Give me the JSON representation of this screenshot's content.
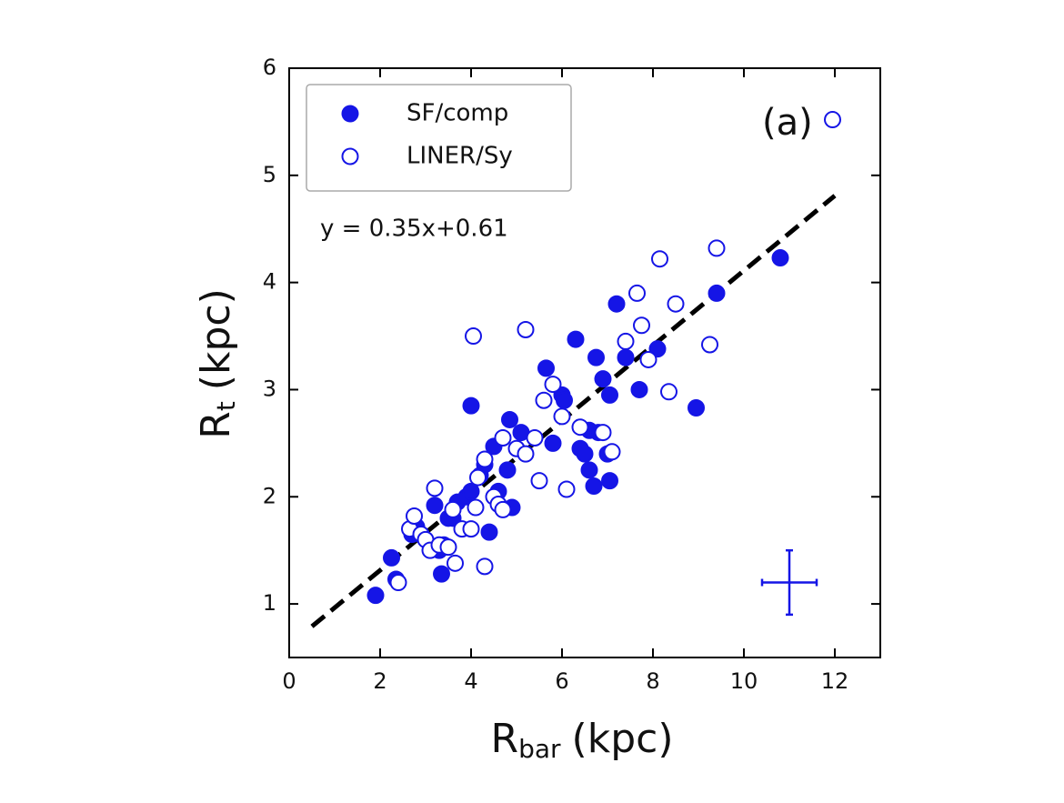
{
  "chart_data": {
    "type": "scatter",
    "xlabel": [
      "R",
      "bar",
      "(kpc)"
    ],
    "ylabel": [
      "R",
      "t",
      "(kpc)"
    ],
    "annotation": "y = 0.35x+0.61",
    "panel_label": "(a)",
    "xlim": [
      0,
      13
    ],
    "xticks": [
      0,
      2,
      4,
      6,
      8,
      10,
      12
    ],
    "ylim": [
      0.5,
      6
    ],
    "yticks": [
      1,
      2,
      3,
      4,
      5,
      6
    ],
    "legend": "upper left",
    "series": [
      {
        "name": "SF/comp",
        "color": "#1515e6",
        "marker": "filled",
        "x": [
          1.9,
          2.25,
          2.35,
          2.8,
          2.7,
          3.2,
          3.3,
          3.35,
          3.5,
          3.7,
          3.9,
          4.0,
          4.0,
          4.2,
          4.3,
          4.4,
          4.5,
          4.6,
          4.8,
          4.85,
          4.9,
          5.1,
          5.65,
          5.8,
          6.0,
          6.05,
          6.3,
          6.4,
          6.5,
          6.6,
          6.6,
          6.7,
          6.75,
          6.8,
          6.9,
          7.0,
          7.05,
          7.05,
          7.2,
          7.4,
          7.7,
          8.1,
          8.95,
          9.4,
          10.8,
          3.4,
          3.6
        ],
        "values": [
          1.08,
          1.43,
          1.23,
          1.72,
          1.65,
          1.92,
          1.5,
          1.28,
          1.8,
          1.95,
          2.0,
          2.05,
          2.85,
          2.2,
          2.3,
          1.67,
          2.47,
          2.05,
          2.25,
          2.72,
          1.9,
          2.6,
          3.2,
          2.5,
          2.95,
          2.9,
          3.47,
          2.45,
          2.4,
          2.25,
          2.62,
          2.1,
          3.3,
          2.6,
          3.1,
          2.4,
          2.95,
          2.15,
          3.8,
          3.3,
          3.0,
          3.38,
          2.83,
          3.9,
          4.23,
          1.55,
          1.8
        ]
      },
      {
        "name": "LINER/Sy",
        "color": "#1515e6",
        "marker": "open",
        "x": [
          2.4,
          2.65,
          2.75,
          2.9,
          3.0,
          3.2,
          3.1,
          3.3,
          3.5,
          3.6,
          3.65,
          3.8,
          4.0,
          4.05,
          4.1,
          4.15,
          4.3,
          4.3,
          4.5,
          4.6,
          4.7,
          4.7,
          5.0,
          5.2,
          5.2,
          5.4,
          5.5,
          5.6,
          5.8,
          6.0,
          6.1,
          6.4,
          6.9,
          7.1,
          7.4,
          7.65,
          7.75,
          7.9,
          8.15,
          8.35,
          8.5,
          9.25,
          9.4,
          11.95
        ],
        "values": [
          1.2,
          1.7,
          1.82,
          1.65,
          1.6,
          2.08,
          1.5,
          1.55,
          1.53,
          1.88,
          1.38,
          1.7,
          1.7,
          3.5,
          1.9,
          2.18,
          2.35,
          1.35,
          2.0,
          1.93,
          1.88,
          2.55,
          2.45,
          2.4,
          3.56,
          2.55,
          2.15,
          2.9,
          3.05,
          2.75,
          2.07,
          2.65,
          2.6,
          2.42,
          3.45,
          3.9,
          3.6,
          3.28,
          4.22,
          2.98,
          3.8,
          3.42,
          4.32,
          5.52
        ]
      }
    ],
    "fit_line": {
      "x": [
        0.5,
        12
      ],
      "values": [
        0.79,
        4.81
      ],
      "color": "#000000"
    },
    "error_cross": {
      "x": 11,
      "y": 1.2,
      "xerr": 0.6,
      "yerr": 0.3,
      "color": "#1515e6"
    }
  }
}
